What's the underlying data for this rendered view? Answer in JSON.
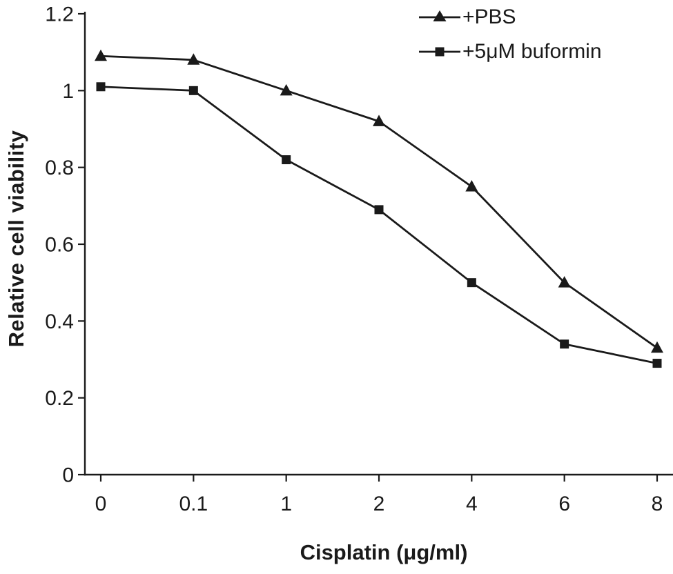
{
  "chart_data": {
    "type": "line",
    "categories": [
      "0",
      "0.1",
      "1",
      "2",
      "4",
      "6",
      "8"
    ],
    "series": [
      {
        "name": "+PBS",
        "marker": "triangle",
        "values": [
          1.09,
          1.08,
          1.0,
          0.92,
          0.75,
          0.5,
          0.33
        ]
      },
      {
        "name": "+5μM buformin",
        "marker": "square",
        "values": [
          1.01,
          1.0,
          0.82,
          0.69,
          0.5,
          0.34,
          0.29
        ]
      }
    ],
    "title": "",
    "xlabel": "Cisplatin (μg/ml)",
    "ylabel": "Relative cell viability",
    "ylim": [
      0,
      1.2
    ],
    "yticks": [
      0,
      0.2,
      0.4,
      0.6,
      0.8,
      1,
      1.2
    ],
    "ytick_labels": [
      "0",
      "0.2",
      "0.4",
      "0.6",
      "0.8",
      "1",
      "1.2"
    ],
    "grid": false,
    "legend_position": "top-right",
    "line_color": "#1a1a1a",
    "background_color": "#ffffff"
  }
}
